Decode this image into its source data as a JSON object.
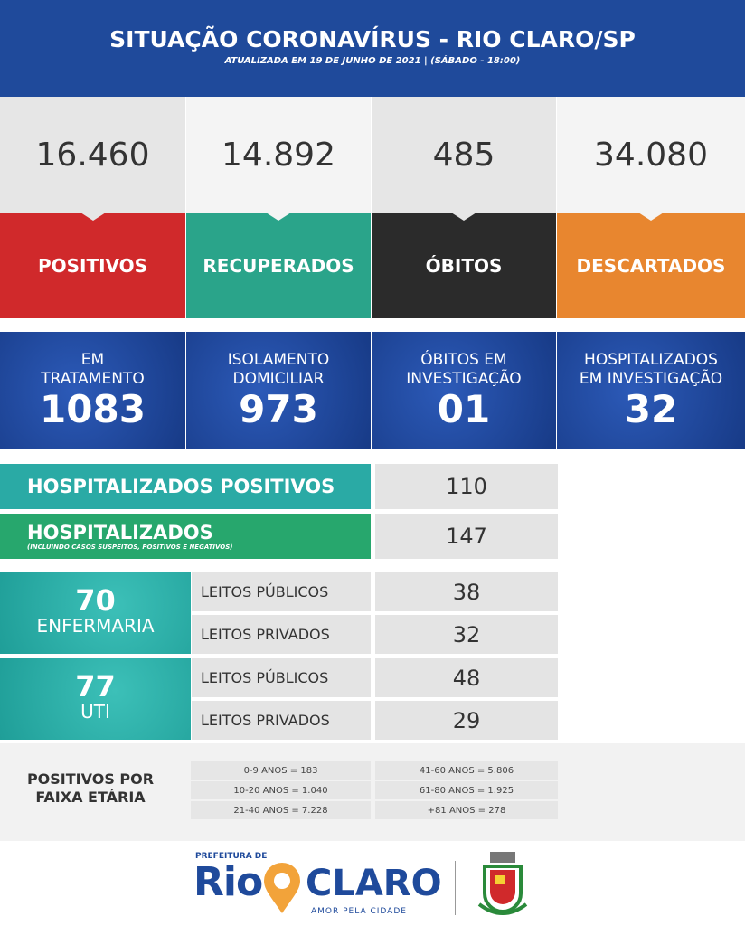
{
  "header": {
    "title": "SITUAÇÃO CORONAVÍRUS - RIO CLARO/SP",
    "subtitle": "ATUALIZADA EM 19 DE JUNHO DE 2021 | (SÁBADO - 18:00)"
  },
  "summary": [
    {
      "value": "16.460",
      "label": "POSITIVOS",
      "color": "#d0292b"
    },
    {
      "value": "14.892",
      "label": "RECUPERADOS",
      "color": "#2aa48a"
    },
    {
      "value": "485",
      "label": "ÓBITOS",
      "color": "#2b2b2b"
    },
    {
      "value": "34.080",
      "label": "DESCARTADOS",
      "color": "#e8862f"
    }
  ],
  "status": [
    {
      "label": [
        "EM",
        "TRATAMENTO"
      ],
      "value": "1083"
    },
    {
      "label": [
        "ISOLAMENTO",
        "DOMICILIAR"
      ],
      "value": "973"
    },
    {
      "label": [
        "ÓBITOS EM",
        "INVESTIGAÇÃO"
      ],
      "value": "01"
    },
    {
      "label": [
        "HOSPITALIZADOS",
        "EM INVESTIGAÇÃO"
      ],
      "value": "32"
    }
  ],
  "hospitalized": [
    {
      "label": "HOSPITALIZADOS POSITIVOS",
      "value": "110",
      "color": "#2aaaa5"
    },
    {
      "label": "HOSPITALIZADOS",
      "note": "(INCLUINDO CASOS SUSPEITOS, POSITIVOS E NEGATIVOS)",
      "value": "147",
      "color": "#27a76d"
    }
  ],
  "beds": [
    {
      "value": "70",
      "label": "ENFERMARIA",
      "rows": [
        {
          "label": "LEITOS PÚBLICOS",
          "value": "38"
        },
        {
          "label": "LEITOS PRIVADOS",
          "value": "32"
        }
      ]
    },
    {
      "value": "77",
      "label": "UTI",
      "rows": [
        {
          "label": "LEITOS PÚBLICOS",
          "value": "48"
        },
        {
          "label": "LEITOS PRIVADOS",
          "value": "29"
        }
      ]
    }
  ],
  "age": {
    "title": [
      "POSITIVOS POR",
      "FAIXA ETÁRIA"
    ],
    "items": [
      "0-9 ANOS = 183",
      "41-60 ANOS = 5.806",
      "10-20 ANOS = 1.040",
      "61-80 ANOS = 1.925",
      "21-40 ANOS = 7.228",
      "+81 ANOS = 278"
    ]
  },
  "footer": {
    "prefix": "PREFEITURA DE",
    "name1": "Rio",
    "name2": "CLARO",
    "slogan": "AMOR PELA CIDADE"
  }
}
